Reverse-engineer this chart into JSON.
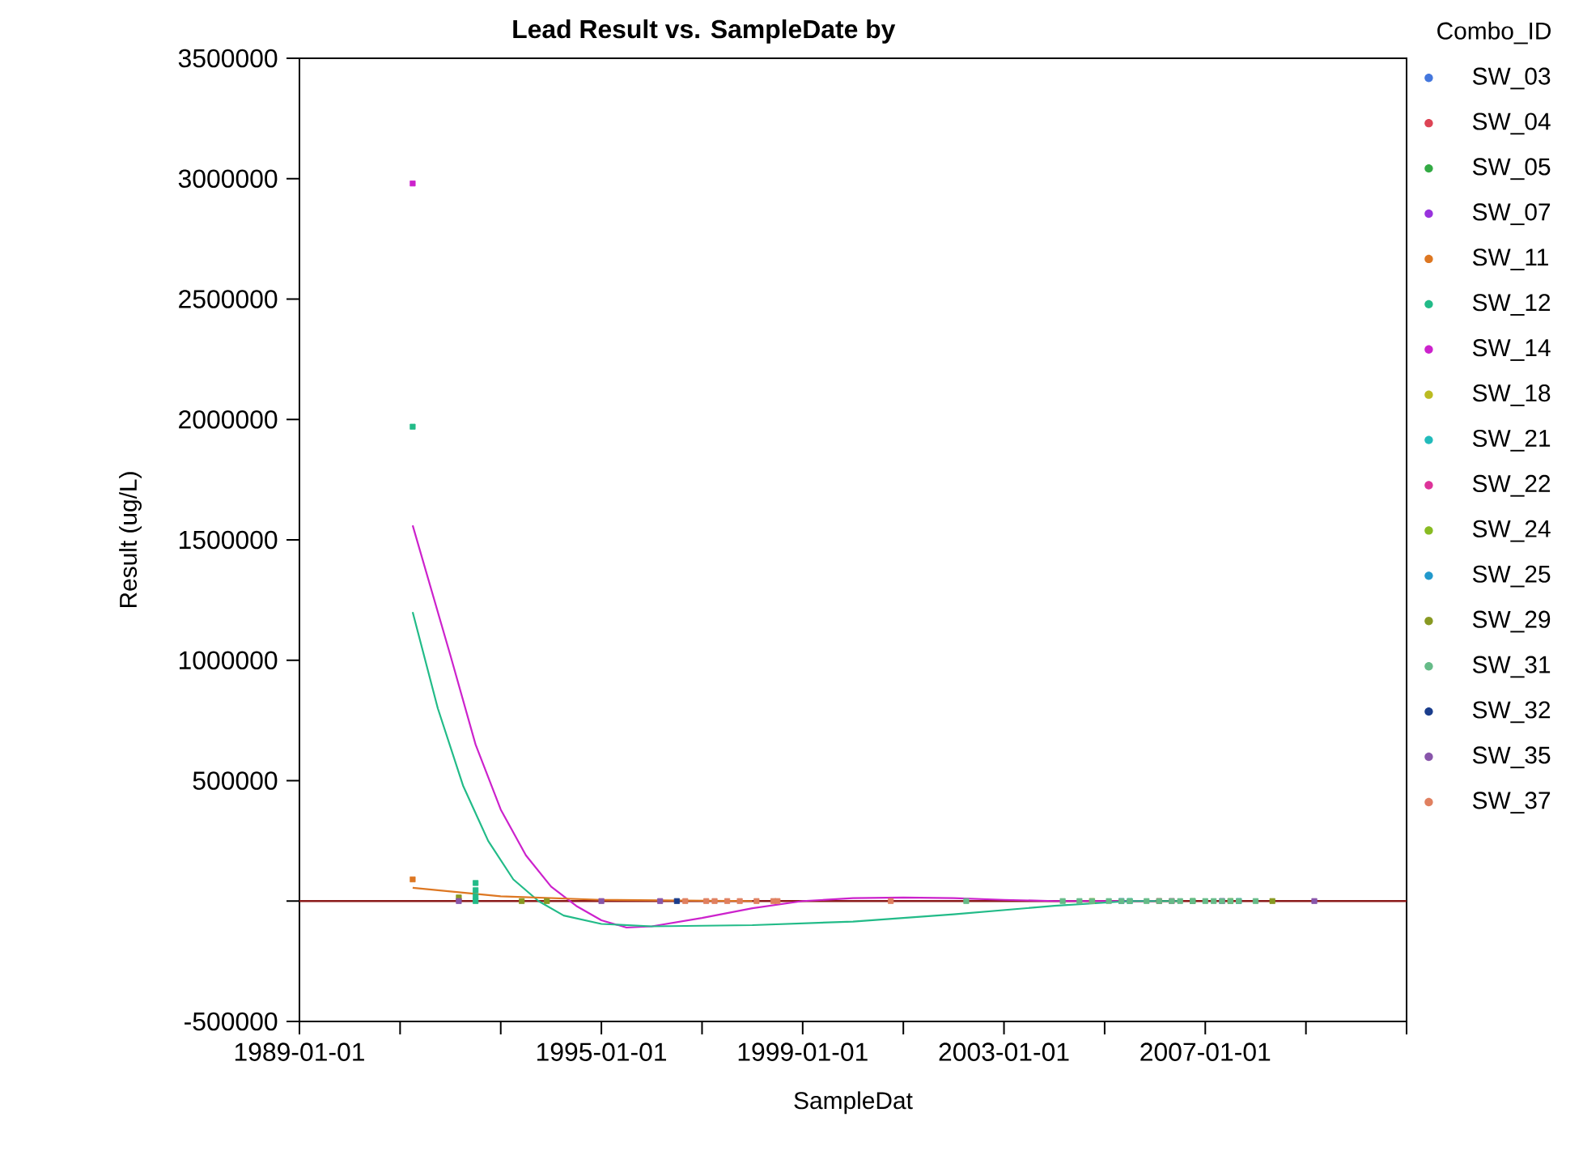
{
  "chart_data": {
    "type": "scatter",
    "title": "Lead Result vs. SampleDate by",
    "xlabel": "SampleDat",
    "ylabel": "Result (ug/L)",
    "legend_title": "Combo_ID",
    "legend": "right",
    "marker": "square",
    "xlim": [
      "1989-01-01",
      "2011-01-01"
    ],
    "xticks": [
      "1989-01-01",
      {
        "value": "1991-01-01",
        "label": null
      },
      {
        "value": "1993-01-01",
        "label": null
      },
      "1995-01-01",
      {
        "value": "1997-01-01",
        "label": null
      },
      "1999-01-01",
      {
        "value": "2001-01-01",
        "label": null
      },
      "2003-01-01",
      {
        "value": "2005-01-01",
        "label": null
      },
      "2007-01-01",
      {
        "value": "2009-01-01",
        "label": null
      },
      {
        "value": "2011-01-01",
        "label": null
      }
    ],
    "ylim": [
      -500000,
      3500000
    ],
    "yticks": [
      -500000,
      {
        "value": 0,
        "label": null
      },
      500000,
      1000000,
      1500000,
      2000000,
      2500000,
      3000000,
      3500000
    ],
    "ref_lines": [
      {
        "axis": "y",
        "value": 0,
        "color": "#8b1a1a"
      }
    ],
    "series": [
      {
        "name": "SW_03",
        "color": "#4477dd",
        "x": [
          "2005-05"
        ],
        "values": [
          0
        ]
      },
      {
        "name": "SW_04",
        "color": "#dd4455",
        "x": [
          "2006-02"
        ],
        "values": [
          0
        ]
      },
      {
        "name": "SW_05",
        "color": "#33aa44",
        "x": [
          "2006-10"
        ],
        "values": [
          0
        ]
      },
      {
        "name": "SW_07",
        "color": "#9933dd",
        "x": [
          "2007-05"
        ],
        "values": [
          0
        ]
      },
      {
        "name": "SW_11",
        "color": "#dd7722",
        "x": [
          "1991-04"
        ],
        "values": [
          90000
        ]
      },
      {
        "name": "SW_12",
        "color": "#22bb88",
        "x": [
          "1991-04",
          "1992-07",
          "1992-07",
          "1992-07",
          "1992-07"
        ],
        "values": [
          1970000,
          75000,
          45000,
          20000,
          0
        ]
      },
      {
        "name": "SW_14",
        "color": "#cc22cc",
        "x": [
          "1991-04"
        ],
        "values": [
          2980000
        ]
      },
      {
        "name": "SW_18",
        "color": "#bbbb22",
        "x": [
          "2004-10"
        ],
        "values": [
          0
        ]
      },
      {
        "name": "SW_21",
        "color": "#22bbbb",
        "x": [
          "2005-07"
        ],
        "values": [
          0
        ]
      },
      {
        "name": "SW_22",
        "color": "#dd3399",
        "x": [
          "2006-05"
        ],
        "values": [
          0
        ]
      },
      {
        "name": "SW_24",
        "color": "#88bb22",
        "x": [
          "2007-07"
        ],
        "values": [
          0
        ]
      },
      {
        "name": "SW_25",
        "color": "#2299cc",
        "x": [
          "2007-09"
        ],
        "values": [
          0
        ]
      },
      {
        "name": "SW_29",
        "color": "#889922",
        "x": [
          "1992-03",
          "1993-06",
          "1993-12",
          "2008-05"
        ],
        "values": [
          15000,
          0,
          0,
          0
        ]
      },
      {
        "name": "SW_31",
        "color": "#66bb88",
        "x": [
          "2002-04",
          "2004-03",
          "2004-07",
          "2004-10",
          "2005-02",
          "2005-05",
          "2005-07",
          "2005-11",
          "2006-02",
          "2006-05",
          "2006-07",
          "2006-10",
          "2007-01",
          "2007-03",
          "2007-05",
          "2007-07",
          "2007-09",
          "2008-01"
        ],
        "values": [
          0,
          0,
          0,
          0,
          0,
          0,
          0,
          0,
          0,
          0,
          0,
          0,
          0,
          0,
          0,
          0,
          0,
          0
        ]
      },
      {
        "name": "SW_32",
        "color": "#1a3d8c",
        "x": [
          "1996-07"
        ],
        "values": [
          0
        ]
      },
      {
        "name": "SW_35",
        "color": "#8855aa",
        "x": [
          "1992-03",
          "1995-01",
          "1996-03",
          "2009-03"
        ],
        "values": [
          0,
          0,
          0,
          0
        ]
      },
      {
        "name": "SW_37",
        "color": "#e08060",
        "x": [
          "1996-09",
          "1997-02",
          "1997-04",
          "1997-07",
          "1997-10",
          "1998-02",
          "1998-06",
          "1998-07",
          "2000-10"
        ],
        "values": [
          0,
          0,
          0,
          0,
          0,
          0,
          0,
          0,
          0
        ]
      },
      {
        "type": "line",
        "marker": "none",
        "color": "#cc22cc",
        "x": [
          "1991-04",
          "1992-01",
          "1992-07",
          "1993-01",
          "1993-07",
          "1994-01",
          "1994-07",
          "1995-01",
          "1995-07",
          "1996-01",
          "1997-01",
          "1998-01",
          "1999-01",
          "2000-01",
          "2001-01",
          "2002-01",
          "2003-01",
          "2004-01",
          "2005-01",
          "2006-01"
        ],
        "values": [
          1560000,
          1020000,
          650000,
          380000,
          190000,
          60000,
          -20000,
          -80000,
          -110000,
          -105000,
          -70000,
          -30000,
          0,
          12000,
          15000,
          12000,
          5000,
          0,
          0,
          0
        ]
      },
      {
        "type": "line",
        "marker": "none",
        "color": "#22bb88",
        "x": [
          "1991-04",
          "1991-10",
          "1992-04",
          "1992-10",
          "1993-04",
          "1993-10",
          "1994-04",
          "1995-01",
          "1996-01",
          "1998-01",
          "2000-01",
          "2002-01",
          "2004-01",
          "2005-07",
          "2006-07"
        ],
        "values": [
          1200000,
          800000,
          480000,
          250000,
          90000,
          0,
          -60000,
          -95000,
          -105000,
          -100000,
          -85000,
          -55000,
          -20000,
          0,
          0
        ]
      },
      {
        "type": "line",
        "marker": "none",
        "color": "#dd7722",
        "x": [
          "1991-04",
          "1993-01",
          "1995-01",
          "1998-01"
        ],
        "values": [
          55000,
          20000,
          5000,
          0
        ]
      }
    ]
  }
}
